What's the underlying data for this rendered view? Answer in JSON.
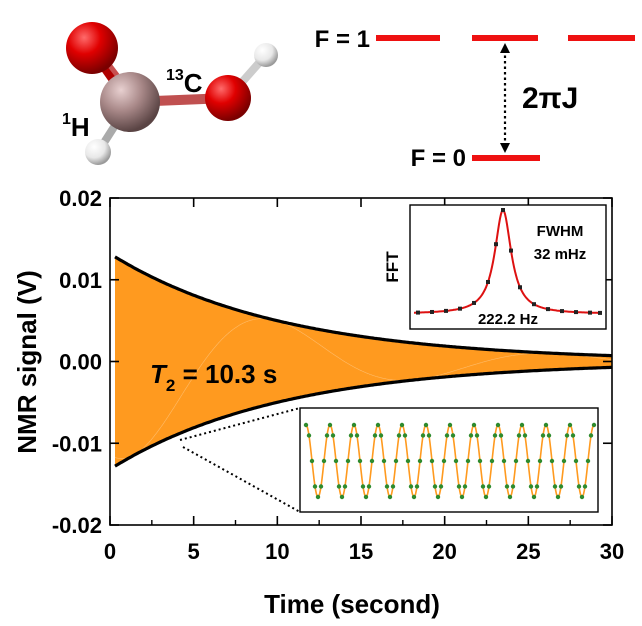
{
  "molecule": {
    "label_c": "C",
    "label_c_iso": "13",
    "label_h": "H",
    "label_h_iso": "1"
  },
  "levels": {
    "upper_label": "F = 1",
    "lower_label": "F = 0",
    "gap_label": "2πJ",
    "line_color": "#ee1111"
  },
  "chart_data": [
    {
      "type": "line",
      "xlabel": "Time (second)",
      "ylabel": "NMR signal (V)",
      "xlim": [
        0,
        30
      ],
      "ylim": [
        -0.02,
        0.02
      ],
      "xticks": [
        "0",
        "5",
        "10",
        "15",
        "20",
        "25",
        "30"
      ],
      "yticks": [
        "0.02",
        "0.01",
        "0.00",
        "-0.01",
        "-0.02"
      ],
      "annotation": "T2 = 10.3 s",
      "series": [
        {
          "role": "signal",
          "color": "#ff9a1f",
          "amplitude_V": 0.0128,
          "decay_T2_s": 10.3,
          "t_start_s": 0.3
        },
        {
          "role": "envelope",
          "color": "#000000",
          "amplitude_V": 0.0128,
          "decay_T2_s": 10.3
        }
      ]
    },
    {
      "type": "line",
      "ylabel": "FFT",
      "center_label": "222.2 Hz",
      "linewidth_label_1": "FWHM",
      "linewidth_label_2": "32 mHz",
      "center_hz": 222.2,
      "fwhm_mhz": 32,
      "fit_color": "#dd1111"
    },
    {
      "type": "line",
      "cycles_shown": 12,
      "points_color": "#2e8b2e",
      "line_color": "#ff9a1f"
    }
  ]
}
